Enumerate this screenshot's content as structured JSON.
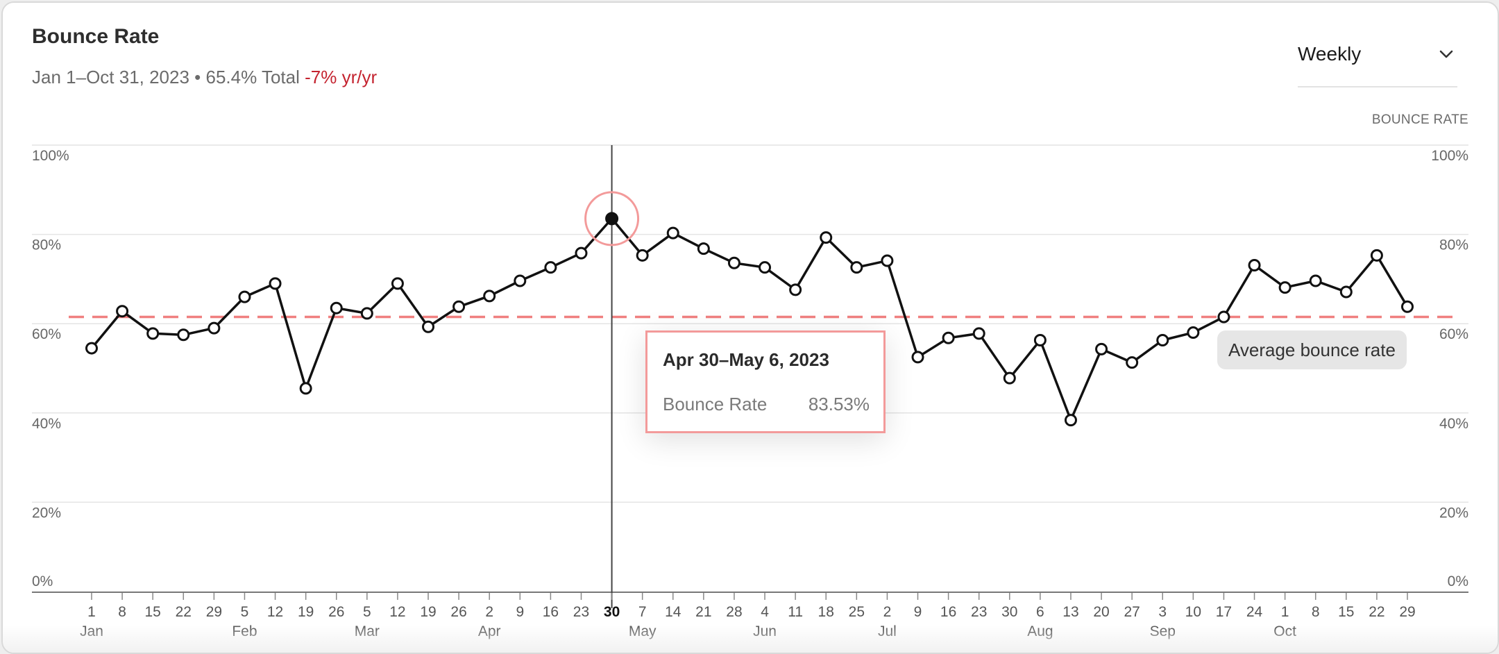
{
  "header": {
    "title": "Bounce Rate",
    "subtitle_main": "Jan 1–Oct 31, 2023 • 65.4% Total ",
    "subtitle_delta": "-7% yr/yr",
    "period_label": "Weekly",
    "axis_title": "BOUNCE RATE"
  },
  "tooltip": {
    "title": "Apr 30–May 6, 2023",
    "label": "Bounce Rate",
    "value": "83.53%"
  },
  "average_label": "Average bounce rate",
  "colors": {
    "line": "#111111",
    "average": "#f08080",
    "highlight": "#f39a9a",
    "negative": "#c4232f"
  },
  "chart_data": {
    "type": "line",
    "title": "Bounce Rate",
    "ylabel": "BOUNCE RATE",
    "ylim": [
      0,
      100
    ],
    "yticks": [
      "0%",
      "20%",
      "40%",
      "60%",
      "80%",
      "100%"
    ],
    "x": [
      "1",
      "8",
      "15",
      "22",
      "29",
      "5",
      "12",
      "19",
      "26",
      "5",
      "12",
      "19",
      "26",
      "2",
      "9",
      "16",
      "23",
      "30",
      "7",
      "14",
      "21",
      "28",
      "4",
      "11",
      "18",
      "25",
      "2",
      "9",
      "16",
      "23",
      "30",
      "6",
      "13",
      "20",
      "27",
      "3",
      "10",
      "17",
      "24",
      "1",
      "8",
      "15",
      "22",
      "29"
    ],
    "month_labels": [
      {
        "label": "Jan",
        "index": 0
      },
      {
        "label": "Feb",
        "index": 5
      },
      {
        "label": "Mar",
        "index": 9
      },
      {
        "label": "Apr",
        "index": 13
      },
      {
        "label": "May",
        "index": 18
      },
      {
        "label": "Jun",
        "index": 22
      },
      {
        "label": "Jul",
        "index": 26
      },
      {
        "label": "Aug",
        "index": 31
      },
      {
        "label": "Sep",
        "index": 35
      },
      {
        "label": "Oct",
        "index": 39
      }
    ],
    "series": [
      {
        "name": "Bounce Rate",
        "values": [
          54.5,
          62.8,
          57.8,
          57.5,
          59.0,
          66.0,
          69.0,
          45.5,
          63.5,
          62.3,
          69.0,
          59.3,
          63.8,
          66.2,
          69.6,
          72.6,
          75.8,
          83.53,
          75.3,
          80.3,
          76.8,
          73.6,
          72.6,
          67.6,
          79.3,
          72.6,
          74.1,
          52.5,
          56.8,
          57.8,
          47.8,
          56.3,
          38.4,
          54.3,
          51.3,
          56.3,
          58.0,
          61.5,
          73.1,
          68.1,
          69.6,
          67.1,
          75.3,
          63.8
        ]
      }
    ],
    "average": 61.5,
    "highlight_index": 17
  }
}
